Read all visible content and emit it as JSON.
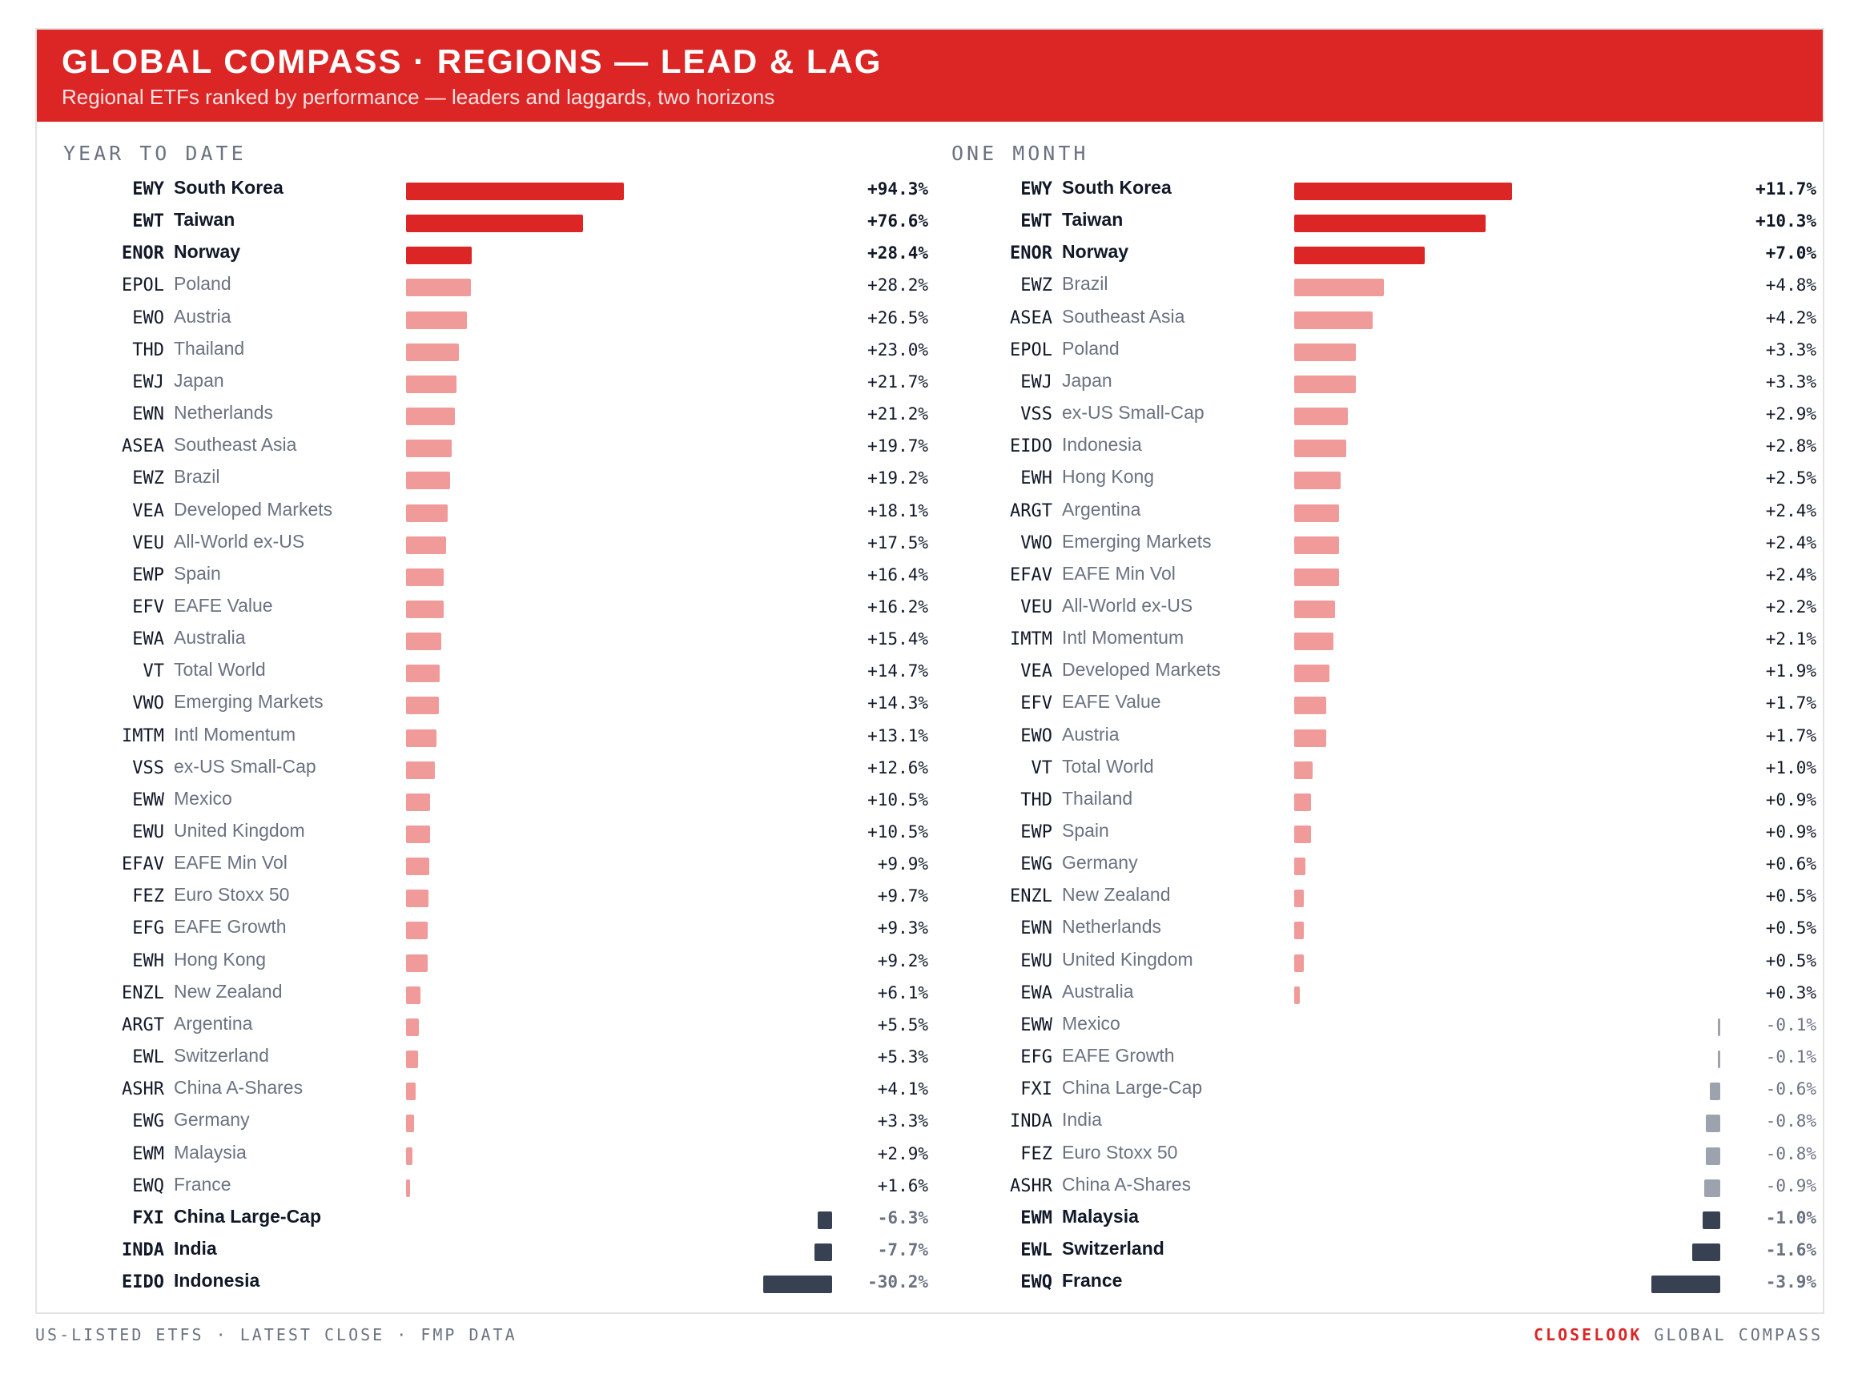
{
  "header": {
    "title": "GLOBAL COMPASS · REGIONS — LEAD & LAG",
    "subtitle": "Regional ETFs ranked by performance — leaders and laggards, two horizons"
  },
  "footer": {
    "left": "US-LISTED ETFS · LATEST CLOSE · FMP DATA",
    "brand": "CLOSELOOK",
    "right": "GLOBAL COMPASS"
  },
  "colors": {
    "leader": "#dc2626",
    "positive": "#f09a9a",
    "negative": "#9ca3af",
    "laggard": "#374151"
  },
  "chart_data": [
    {
      "type": "bar",
      "title": "YEAR TO DATE",
      "unit": "%",
      "rows": [
        {
          "ticker": "EWY",
          "name": "South Korea",
          "value": 94.3,
          "label": "+94.3%",
          "tier": "leader"
        },
        {
          "ticker": "EWT",
          "name": "Taiwan",
          "value": 76.6,
          "label": "+76.6%",
          "tier": "leader"
        },
        {
          "ticker": "ENOR",
          "name": "Norway",
          "value": 28.4,
          "label": "+28.4%",
          "tier": "leader"
        },
        {
          "ticker": "EPOL",
          "name": "Poland",
          "value": 28.2,
          "label": "+28.2%",
          "tier": "normal"
        },
        {
          "ticker": "EWO",
          "name": "Austria",
          "value": 26.5,
          "label": "+26.5%",
          "tier": "normal"
        },
        {
          "ticker": "THD",
          "name": "Thailand",
          "value": 23.0,
          "label": "+23.0%",
          "tier": "normal"
        },
        {
          "ticker": "EWJ",
          "name": "Japan",
          "value": 21.7,
          "label": "+21.7%",
          "tier": "normal"
        },
        {
          "ticker": "EWN",
          "name": "Netherlands",
          "value": 21.2,
          "label": "+21.2%",
          "tier": "normal"
        },
        {
          "ticker": "ASEA",
          "name": "Southeast Asia",
          "value": 19.7,
          "label": "+19.7%",
          "tier": "normal"
        },
        {
          "ticker": "EWZ",
          "name": "Brazil",
          "value": 19.2,
          "label": "+19.2%",
          "tier": "normal"
        },
        {
          "ticker": "VEA",
          "name": "Developed Markets",
          "value": 18.1,
          "label": "+18.1%",
          "tier": "normal"
        },
        {
          "ticker": "VEU",
          "name": "All-World ex-US",
          "value": 17.5,
          "label": "+17.5%",
          "tier": "normal"
        },
        {
          "ticker": "EWP",
          "name": "Spain",
          "value": 16.4,
          "label": "+16.4%",
          "tier": "normal"
        },
        {
          "ticker": "EFV",
          "name": "EAFE Value",
          "value": 16.2,
          "label": "+16.2%",
          "tier": "normal"
        },
        {
          "ticker": "EWA",
          "name": "Australia",
          "value": 15.4,
          "label": "+15.4%",
          "tier": "normal"
        },
        {
          "ticker": "VT",
          "name": "Total World",
          "value": 14.7,
          "label": "+14.7%",
          "tier": "normal"
        },
        {
          "ticker": "VWO",
          "name": "Emerging Markets",
          "value": 14.3,
          "label": "+14.3%",
          "tier": "normal"
        },
        {
          "ticker": "IMTM",
          "name": "Intl Momentum",
          "value": 13.1,
          "label": "+13.1%",
          "tier": "normal"
        },
        {
          "ticker": "VSS",
          "name": "ex-US Small-Cap",
          "value": 12.6,
          "label": "+12.6%",
          "tier": "normal"
        },
        {
          "ticker": "EWW",
          "name": "Mexico",
          "value": 10.5,
          "label": "+10.5%",
          "tier": "normal"
        },
        {
          "ticker": "EWU",
          "name": "United Kingdom",
          "value": 10.5,
          "label": "+10.5%",
          "tier": "normal"
        },
        {
          "ticker": "EFAV",
          "name": "EAFE Min Vol",
          "value": 9.9,
          "label": "+9.9%",
          "tier": "normal"
        },
        {
          "ticker": "FEZ",
          "name": "Euro Stoxx 50",
          "value": 9.7,
          "label": "+9.7%",
          "tier": "normal"
        },
        {
          "ticker": "EFG",
          "name": "EAFE Growth",
          "value": 9.3,
          "label": "+9.3%",
          "tier": "normal"
        },
        {
          "ticker": "EWH",
          "name": "Hong Kong",
          "value": 9.2,
          "label": "+9.2%",
          "tier": "normal"
        },
        {
          "ticker": "ENZL",
          "name": "New Zealand",
          "value": 6.1,
          "label": "+6.1%",
          "tier": "normal"
        },
        {
          "ticker": "ARGT",
          "name": "Argentina",
          "value": 5.5,
          "label": "+5.5%",
          "tier": "normal"
        },
        {
          "ticker": "EWL",
          "name": "Switzerland",
          "value": 5.3,
          "label": "+5.3%",
          "tier": "normal"
        },
        {
          "ticker": "ASHR",
          "name": "China A-Shares",
          "value": 4.1,
          "label": "+4.1%",
          "tier": "normal"
        },
        {
          "ticker": "EWG",
          "name": "Germany",
          "value": 3.3,
          "label": "+3.3%",
          "tier": "normal"
        },
        {
          "ticker": "EWM",
          "name": "Malaysia",
          "value": 2.9,
          "label": "+2.9%",
          "tier": "normal"
        },
        {
          "ticker": "EWQ",
          "name": "France",
          "value": 1.6,
          "label": "+1.6%",
          "tier": "normal"
        },
        {
          "ticker": "FXI",
          "name": "China Large-Cap",
          "value": -6.3,
          "label": "-6.3%",
          "tier": "laggard"
        },
        {
          "ticker": "INDA",
          "name": "India",
          "value": -7.7,
          "label": "-7.7%",
          "tier": "laggard"
        },
        {
          "ticker": "EIDO",
          "name": "Indonesia",
          "value": -30.2,
          "label": "-30.2%",
          "tier": "laggard"
        }
      ]
    },
    {
      "type": "bar",
      "title": "ONE MONTH",
      "unit": "%",
      "rows": [
        {
          "ticker": "EWY",
          "name": "South Korea",
          "value": 11.7,
          "label": "+11.7%",
          "tier": "leader"
        },
        {
          "ticker": "EWT",
          "name": "Taiwan",
          "value": 10.3,
          "label": "+10.3%",
          "tier": "leader"
        },
        {
          "ticker": "ENOR",
          "name": "Norway",
          "value": 7.0,
          "label": "+7.0%",
          "tier": "leader"
        },
        {
          "ticker": "EWZ",
          "name": "Brazil",
          "value": 4.8,
          "label": "+4.8%",
          "tier": "normal"
        },
        {
          "ticker": "ASEA",
          "name": "Southeast Asia",
          "value": 4.2,
          "label": "+4.2%",
          "tier": "normal"
        },
        {
          "ticker": "EPOL",
          "name": "Poland",
          "value": 3.3,
          "label": "+3.3%",
          "tier": "normal"
        },
        {
          "ticker": "EWJ",
          "name": "Japan",
          "value": 3.3,
          "label": "+3.3%",
          "tier": "normal"
        },
        {
          "ticker": "VSS",
          "name": "ex-US Small-Cap",
          "value": 2.9,
          "label": "+2.9%",
          "tier": "normal"
        },
        {
          "ticker": "EIDO",
          "name": "Indonesia",
          "value": 2.8,
          "label": "+2.8%",
          "tier": "normal"
        },
        {
          "ticker": "EWH",
          "name": "Hong Kong",
          "value": 2.5,
          "label": "+2.5%",
          "tier": "normal"
        },
        {
          "ticker": "ARGT",
          "name": "Argentina",
          "value": 2.4,
          "label": "+2.4%",
          "tier": "normal"
        },
        {
          "ticker": "VWO",
          "name": "Emerging Markets",
          "value": 2.4,
          "label": "+2.4%",
          "tier": "normal"
        },
        {
          "ticker": "EFAV",
          "name": "EAFE Min Vol",
          "value": 2.4,
          "label": "+2.4%",
          "tier": "normal"
        },
        {
          "ticker": "VEU",
          "name": "All-World ex-US",
          "value": 2.2,
          "label": "+2.2%",
          "tier": "normal"
        },
        {
          "ticker": "IMTM",
          "name": "Intl Momentum",
          "value": 2.1,
          "label": "+2.1%",
          "tier": "normal"
        },
        {
          "ticker": "VEA",
          "name": "Developed Markets",
          "value": 1.9,
          "label": "+1.9%",
          "tier": "normal"
        },
        {
          "ticker": "EFV",
          "name": "EAFE Value",
          "value": 1.7,
          "label": "+1.7%",
          "tier": "normal"
        },
        {
          "ticker": "EWO",
          "name": "Austria",
          "value": 1.7,
          "label": "+1.7%",
          "tier": "normal"
        },
        {
          "ticker": "VT",
          "name": "Total World",
          "value": 1.0,
          "label": "+1.0%",
          "tier": "normal"
        },
        {
          "ticker": "THD",
          "name": "Thailand",
          "value": 0.9,
          "label": "+0.9%",
          "tier": "normal"
        },
        {
          "ticker": "EWP",
          "name": "Spain",
          "value": 0.9,
          "label": "+0.9%",
          "tier": "normal"
        },
        {
          "ticker": "EWG",
          "name": "Germany",
          "value": 0.6,
          "label": "+0.6%",
          "tier": "normal"
        },
        {
          "ticker": "ENZL",
          "name": "New Zealand",
          "value": 0.5,
          "label": "+0.5%",
          "tier": "normal"
        },
        {
          "ticker": "EWN",
          "name": "Netherlands",
          "value": 0.5,
          "label": "+0.5%",
          "tier": "normal"
        },
        {
          "ticker": "EWU",
          "name": "United Kingdom",
          "value": 0.5,
          "label": "+0.5%",
          "tier": "normal"
        },
        {
          "ticker": "EWA",
          "name": "Australia",
          "value": 0.3,
          "label": "+0.3%",
          "tier": "normal"
        },
        {
          "ticker": "EWW",
          "name": "Mexico",
          "value": -0.1,
          "label": "-0.1%",
          "tier": "normal"
        },
        {
          "ticker": "EFG",
          "name": "EAFE Growth",
          "value": -0.1,
          "label": "-0.1%",
          "tier": "normal"
        },
        {
          "ticker": "FXI",
          "name": "China Large-Cap",
          "value": -0.6,
          "label": "-0.6%",
          "tier": "normal"
        },
        {
          "ticker": "INDA",
          "name": "India",
          "value": -0.8,
          "label": "-0.8%",
          "tier": "normal"
        },
        {
          "ticker": "FEZ",
          "name": "Euro Stoxx 50",
          "value": -0.8,
          "label": "-0.8%",
          "tier": "normal"
        },
        {
          "ticker": "ASHR",
          "name": "China A-Shares",
          "value": -0.9,
          "label": "-0.9%",
          "tier": "normal"
        },
        {
          "ticker": "EWM",
          "name": "Malaysia",
          "value": -1.0,
          "label": "-1.0%",
          "tier": "laggard"
        },
        {
          "ticker": "EWL",
          "name": "Switzerland",
          "value": -1.6,
          "label": "-1.6%",
          "tier": "laggard"
        },
        {
          "ticker": "EWQ",
          "name": "France",
          "value": -3.9,
          "label": "-3.9%",
          "tier": "laggard"
        }
      ]
    }
  ]
}
